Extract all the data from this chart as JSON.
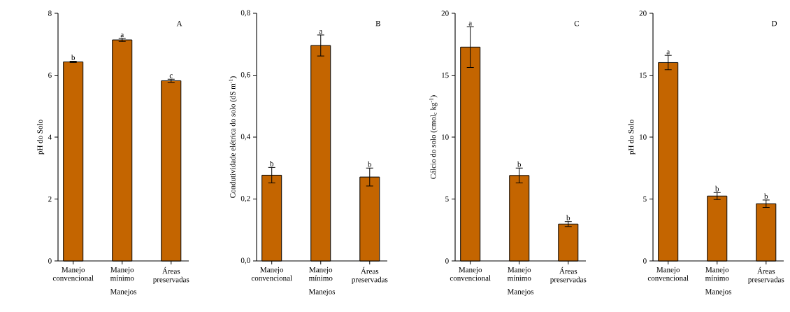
{
  "chart_data": [
    {
      "type": "bar",
      "title": "A",
      "xlabel": "Manejos",
      "ylabel": "pH do Solo",
      "categories": [
        "Manejo convencional",
        "Manejo mínimo",
        "Áreas preservadas"
      ],
      "values": [
        6.43,
        7.14,
        5.82
      ],
      "errors": [
        0.02,
        0.05,
        0.05
      ],
      "color": "#c46500",
      "ylim": [
        0,
        8
      ],
      "yticks": [
        0,
        2,
        4,
        6,
        8
      ],
      "grid": false,
      "annotations": [
        {
          "text": "b",
          "x": "Manejo convencional",
          "y": 6.45
        },
        {
          "text": "a",
          "x": "Manejo mínimo",
          "y": 7.19
        },
        {
          "text": "c",
          "x": "Áreas preservadas",
          "y": 5.87
        }
      ]
    },
    {
      "type": "bar",
      "title": "B",
      "xlabel": "Manejos",
      "ylabel": "Condutividade elétrica do solo  (dS m$^{-1}$)",
      "categories": [
        "Manejo convencional",
        "Manejo mínimo",
        "Áreas preservadas"
      ],
      "values": [
        0.277,
        0.696,
        0.271
      ],
      "errors": [
        0.025,
        0.034,
        0.029
      ],
      "color": "#c46500",
      "ylim": [
        0,
        0.8
      ],
      "yticks": [
        {
          "value": 0,
          "label": "0,0"
        },
        {
          "value": 0.2,
          "label": "0,2"
        },
        {
          "value": 0.4,
          "label": "0,4"
        },
        {
          "value": 0.6,
          "label": "0,6"
        },
        {
          "value": 0.8,
          "label": "0,8"
        }
      ],
      "grid": false,
      "annotations": [
        {
          "text": "b",
          "x": "Manejo convencional",
          "y": 0.302
        },
        {
          "text": "a",
          "x": "Manejo mínimo",
          "y": 0.73
        },
        {
          "text": "b",
          "x": "Áreas preservadas",
          "y": 0.3
        }
      ]
    },
    {
      "type": "bar",
      "title": "C",
      "xlabel": "Manejos",
      "ylabel": "Cálcio do solo  (cmol$_{c}$ kg$^{-1}$)",
      "categories": [
        "Manejo convencional",
        "Manejo mínimo",
        "Áreas preservadas"
      ],
      "values": [
        17.27,
        6.9,
        2.98
      ],
      "errors": [
        1.65,
        0.6,
        0.2
      ],
      "color": "#c46500",
      "ylim": [
        0,
        20
      ],
      "yticks": [
        0,
        5,
        10,
        15,
        20
      ],
      "grid": false,
      "annotations": [
        {
          "text": "a",
          "x": "Manejo convencional",
          "y": 18.92
        },
        {
          "text": "b",
          "x": "Manejo mínimo",
          "y": 7.5
        },
        {
          "text": "b",
          "x": "Áreas preservadas",
          "y": 3.18
        }
      ]
    },
    {
      "type": "bar",
      "title": "D",
      "xlabel": "Manejos",
      "ylabel": "pH do Solo",
      "categories": [
        "Manejo convencional",
        "Manejo mínimo",
        "Áreas preservadas"
      ],
      "values": [
        16.02,
        5.24,
        4.62
      ],
      "errors": [
        0.58,
        0.28,
        0.3
      ],
      "color": "#c46500",
      "ylim": [
        0,
        20
      ],
      "yticks": [
        0,
        5,
        10,
        15,
        20
      ],
      "grid": false,
      "annotations": [
        {
          "text": "a",
          "x": "Manejo convencional",
          "y": 16.6
        },
        {
          "text": "b",
          "x": "Manejo mínimo",
          "y": 5.52
        },
        {
          "text": "b",
          "x": "Áreas preservadas",
          "y": 4.92
        }
      ]
    }
  ]
}
